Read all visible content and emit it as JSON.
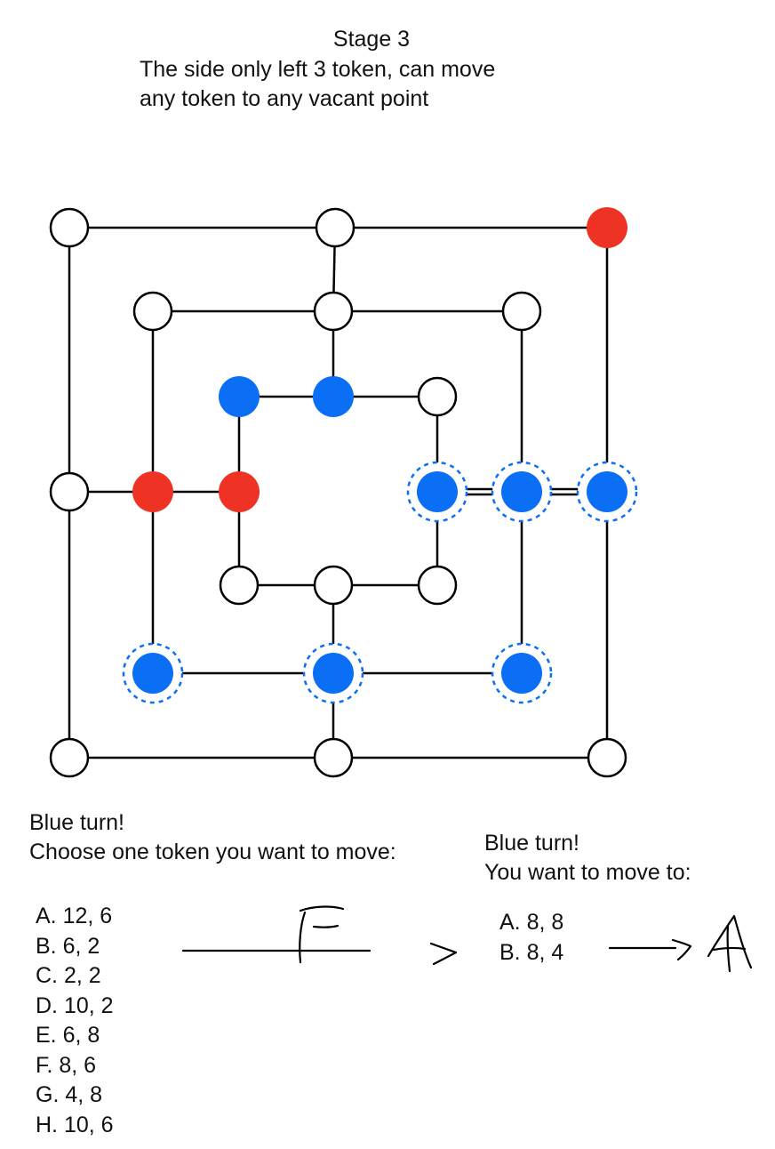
{
  "header": {
    "title": "Stage 3",
    "description_lines": [
      "The side only left 3 token, can move",
      "any token to any vacant point"
    ]
  },
  "colors": {
    "red": "#ee3224",
    "blue": "#0a6ff5",
    "empty": "#ffffff",
    "line": "#000000",
    "highlight": "#0a6ff5"
  },
  "board": {
    "points": [
      {
        "id": "p-0-0",
        "state": "empty"
      },
      {
        "id": "p-6-0",
        "state": "empty"
      },
      {
        "id": "p-12-0",
        "state": "red"
      },
      {
        "id": "p-2-2",
        "state": "empty"
      },
      {
        "id": "p-6-2",
        "state": "empty"
      },
      {
        "id": "p-10-2",
        "state": "empty"
      },
      {
        "id": "p-4-4",
        "state": "blue"
      },
      {
        "id": "p-6-4",
        "state": "blue"
      },
      {
        "id": "p-8-4",
        "state": "empty"
      },
      {
        "id": "p-0-6",
        "state": "empty"
      },
      {
        "id": "p-2-6",
        "state": "red"
      },
      {
        "id": "p-4-6",
        "state": "red"
      },
      {
        "id": "p-8-6",
        "state": "blue",
        "highlighted": true
      },
      {
        "id": "p-10-6",
        "state": "blue",
        "highlighted": true
      },
      {
        "id": "p-12-6",
        "state": "blue",
        "highlighted": true
      },
      {
        "id": "p-4-8",
        "state": "empty"
      },
      {
        "id": "p-6-8",
        "state": "empty"
      },
      {
        "id": "p-8-8",
        "state": "empty"
      },
      {
        "id": "p-2-10",
        "state": "blue",
        "highlighted": true
      },
      {
        "id": "p-6-10",
        "state": "blue",
        "highlighted": true
      },
      {
        "id": "p-10-10",
        "state": "blue",
        "highlighted": true
      },
      {
        "id": "p-0-12",
        "state": "empty"
      },
      {
        "id": "p-6-12",
        "state": "empty"
      },
      {
        "id": "p-12-12",
        "state": "empty"
      }
    ]
  },
  "left_panel": {
    "prompt_lines": [
      "Blue turn!",
      "Choose one token you want to move:"
    ],
    "options": [
      "A. 12, 6",
      "B. 6, 2",
      "C. 2, 2",
      "D. 10, 2",
      "E. 6, 8",
      "F.  8, 6",
      "G. 4, 8",
      "H. 10, 6"
    ]
  },
  "right_panel": {
    "prompt_lines": [
      "Blue turn!",
      "You want to move to:"
    ],
    "options": [
      "A. 8, 8",
      "B. 8, 4"
    ]
  },
  "handwriting": {
    "first_answer": "F",
    "chevron": ">",
    "second_answer": "A"
  }
}
